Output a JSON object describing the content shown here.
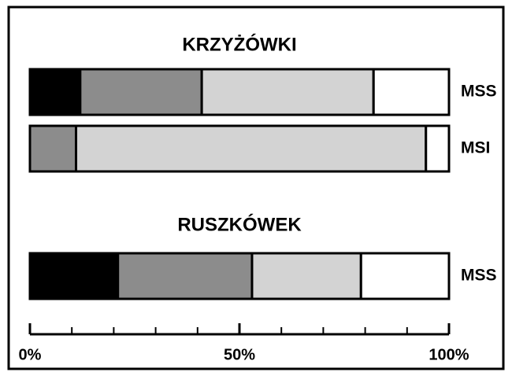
{
  "chart_data": {
    "type": "bar",
    "stacked": true,
    "orientation": "horizontal",
    "xlim": [
      0,
      100
    ],
    "xticks": [
      {
        "value": 0,
        "label": "0%"
      },
      {
        "value": 50,
        "label": "50%"
      },
      {
        "value": 100,
        "label": "100%"
      }
    ],
    "xminor_ticks": [
      10,
      20,
      30,
      40,
      60,
      70,
      80,
      90
    ],
    "panels": [
      {
        "title": "KRZYŻÓWKI",
        "categories": [
          "MSS",
          "MSI"
        ],
        "series": [
          {
            "color": "#000000",
            "values": [
              12,
              0
            ]
          },
          {
            "color": "#8c8c8c",
            "values": [
              29,
              11
            ]
          },
          {
            "color": "#d3d3d3",
            "values": [
              41,
              83.5
            ]
          },
          {
            "color": "#ffffff",
            "values": [
              18,
              5.5
            ]
          }
        ]
      },
      {
        "title": "RUSZKÓWEK",
        "categories": [
          "MSS"
        ],
        "series": [
          {
            "color": "#000000",
            "values": [
              21
            ]
          },
          {
            "color": "#8c8c8c",
            "values": [
              32
            ]
          },
          {
            "color": "#d3d3d3",
            "values": [
              26
            ]
          },
          {
            "color": "#ffffff",
            "values": [
              21
            ]
          }
        ]
      }
    ]
  }
}
